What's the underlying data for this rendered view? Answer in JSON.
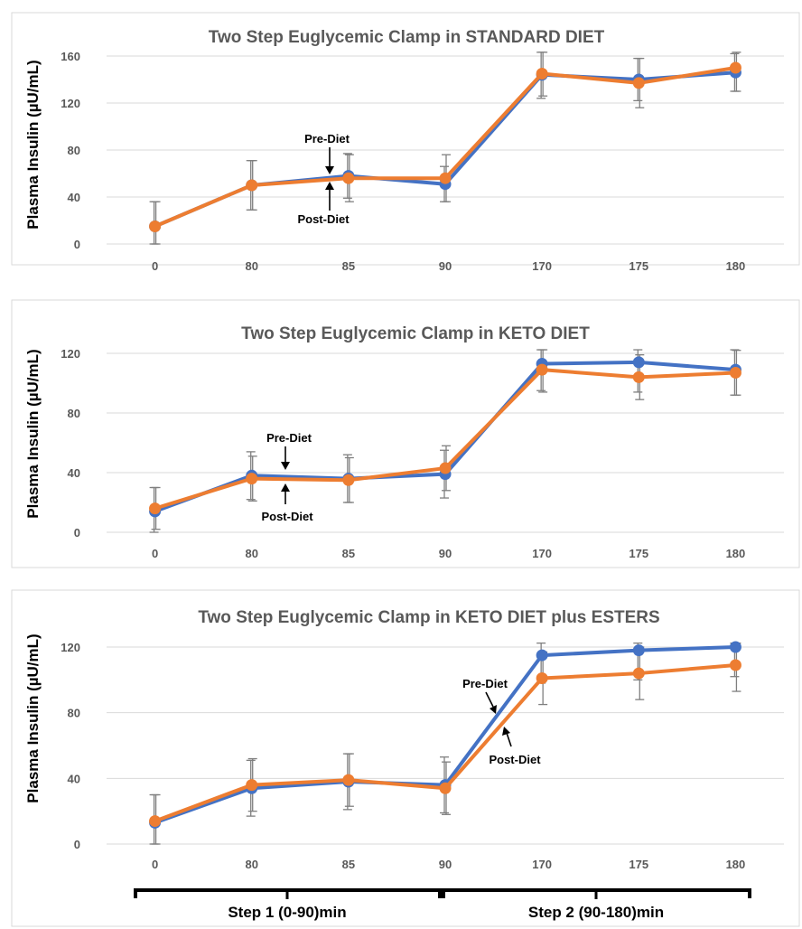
{
  "chart_data": [
    {
      "type": "line",
      "title": "Two Step Euglycemic Clamp in STANDARD DIET",
      "ylabel": "Plasma Insulin (µU/mL)",
      "categories": [
        "0",
        "80",
        "85",
        "90",
        "170",
        "175",
        "180"
      ],
      "yticks": [
        "0",
        "40",
        "80",
        "120",
        "160"
      ],
      "ylim": [
        0,
        160
      ],
      "grid": true,
      "error_bars": true,
      "series": [
        {
          "values": [
            15,
            50,
            58,
            51,
            144,
            140,
            146
          ],
          "error": [
            21,
            21,
            19,
            15,
            20,
            18,
            16
          ],
          "color": "#4472C4"
        },
        {
          "values": [
            15,
            50,
            56,
            56,
            145,
            137,
            150
          ],
          "error": [
            21,
            21,
            20,
            20,
            19,
            21,
            20
          ],
          "color": "#ED7D31"
        }
      ],
      "annotations": [
        {
          "text": "Pre-Diet",
          "arrow": "down"
        },
        {
          "text": "Post-Diet",
          "arrow": "up"
        }
      ]
    },
    {
      "type": "line",
      "title": "Two Step Euglycemic Clamp in KETO DIET",
      "ylabel": "Plasma Insulin (µU/mL)",
      "categories": [
        "0",
        "80",
        "85",
        "90",
        "170",
        "175",
        "180"
      ],
      "yticks": [
        "0",
        "40",
        "80",
        "120"
      ],
      "ylim": [
        0,
        120
      ],
      "grid": true,
      "error_bars": true,
      "series": [
        {
          "values": [
            14,
            38,
            36,
            39,
            113,
            114,
            109
          ],
          "error": [
            16,
            16,
            16,
            16,
            18,
            20,
            17
          ],
          "color": "#4472C4"
        },
        {
          "values": [
            16,
            36,
            35,
            43,
            109,
            104,
            107
          ],
          "error": [
            14,
            15,
            15,
            15,
            15,
            15,
            15
          ],
          "color": "#ED7D31"
        }
      ],
      "annotations": [
        {
          "text": "Pre-Diet",
          "arrow": "down"
        },
        {
          "text": "Post-Diet",
          "arrow": "up"
        }
      ]
    },
    {
      "type": "line",
      "title": "Two Step Euglycemic Clamp in KETO DIET plus ESTERS",
      "ylabel": "Plasma Insulin (µU/mL)",
      "categories": [
        "0",
        "80",
        "85",
        "90",
        "170",
        "175",
        "180"
      ],
      "yticks": [
        "0",
        "40",
        "80",
        "120"
      ],
      "ylim": [
        0,
        140
      ],
      "grid": true,
      "error_bars": true,
      "series": [
        {
          "values": [
            13,
            34,
            38,
            36,
            115,
            118,
            120
          ],
          "error": [
            17,
            17,
            17,
            17,
            17,
            18,
            18
          ],
          "color": "#4472C4"
        },
        {
          "values": [
            14,
            36,
            39,
            34,
            101,
            104,
            109
          ],
          "error": [
            16,
            16,
            16,
            16,
            16,
            16,
            16
          ],
          "color": "#ED7D31"
        }
      ],
      "annotations": [
        {
          "text": "Pre-Diet",
          "arrow": "down-left"
        },
        {
          "text": "Post-Diet",
          "arrow": "up-left"
        }
      ],
      "step_brackets": [
        {
          "label": "Step 1 (0-90)min"
        },
        {
          "label": "Step 2 (90-180)min"
        }
      ]
    }
  ]
}
